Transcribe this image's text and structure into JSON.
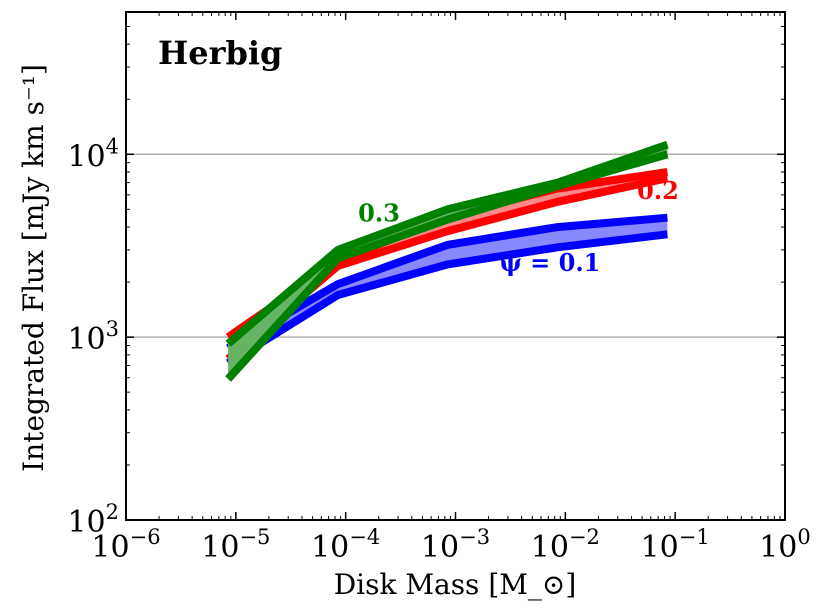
{
  "chart_data": {
    "type": "line",
    "panel_title": "Herbig",
    "xlabel": "Disk Mass [M_⊙]",
    "ylabel": "Integrated Flux [mJy km s⁻¹]",
    "xscale": "log",
    "yscale": "log",
    "xlim": [
      1e-06,
      1
    ],
    "ylim": [
      100,
      60000
    ],
    "x_ticks": [
      {
        "value": 1e-06,
        "base": "10",
        "exp": "−6"
      },
      {
        "value": 1e-05,
        "base": "10",
        "exp": "−5"
      },
      {
        "value": 0.0001,
        "base": "10",
        "exp": "−4"
      },
      {
        "value": 0.001,
        "base": "10",
        "exp": "−3"
      },
      {
        "value": 0.01,
        "base": "10",
        "exp": "−2"
      },
      {
        "value": 0.1,
        "base": "10",
        "exp": "−1"
      },
      {
        "value": 1,
        "base": "10",
        "exp": "0"
      }
    ],
    "y_ticks": [
      {
        "value": 100,
        "base": "10",
        "exp": "2"
      },
      {
        "value": 1000,
        "base": "10",
        "exp": "3"
      },
      {
        "value": 10000,
        "base": "10",
        "exp": "4"
      }
    ],
    "gridlines_y": [
      1000,
      10000
    ],
    "x": [
      8.5e-06,
      8.5e-05,
      0.00085,
      0.0085,
      0.085
    ],
    "series": [
      {
        "name": "ψ = 0.1",
        "label": "ψ = 0.1",
        "label_at": [
          0.0025,
          2300
        ],
        "color": "#0000ff",
        "fill": "#8888ff",
        "upper": [
          870,
          1950,
          3200,
          4000,
          4500
        ],
        "lower": [
          720,
          1700,
          2500,
          3100,
          3650
        ]
      },
      {
        "name": "ψ = 0.2",
        "label": "0.2",
        "label_at": [
          0.045,
          5700
        ],
        "color": "#ff0000",
        "fill": "#ff8888",
        "upper": [
          1000,
          2600,
          4600,
          6500,
          8000
        ],
        "lower": [
          760,
          2450,
          3800,
          5500,
          7400
        ]
      },
      {
        "name": "ψ = 0.3",
        "label": "0.3",
        "label_at": [
          0.00013,
          4300
        ],
        "color": "#008000",
        "fill": "#66b366",
        "upper": [
          920,
          3000,
          5000,
          7000,
          11300
        ],
        "lower": [
          590,
          2700,
          4400,
          6700,
          10000
        ]
      }
    ]
  }
}
